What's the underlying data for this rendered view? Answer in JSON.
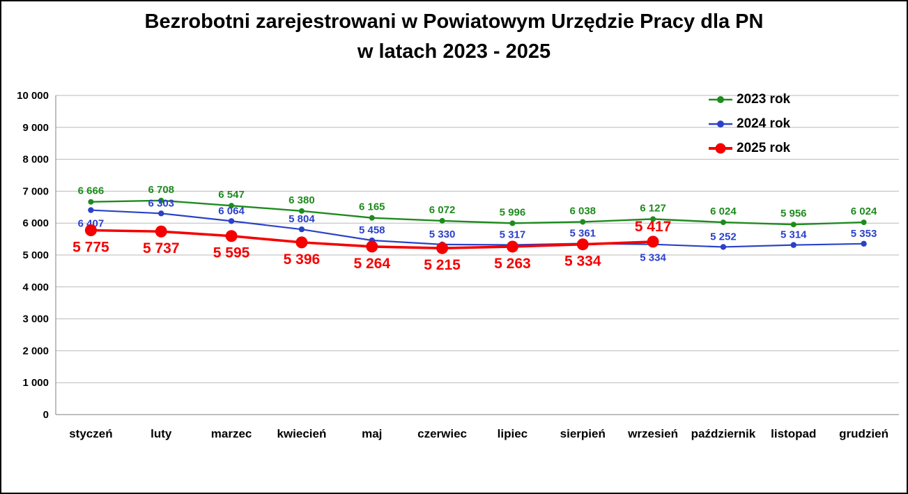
{
  "title": {
    "line1": "Bezrobotni zarejestrowani w Powiatowym Urzędzie Pracy dla PN",
    "line2": "w latach 2023 - 2025"
  },
  "chart_data": {
    "type": "line",
    "title": "Bezrobotni zarejestrowani w Powiatowym Urzędzie Pracy dla PN w latach 2023 - 2025",
    "categories": [
      "styczeń",
      "luty",
      "marzec",
      "kwiecień",
      "maj",
      "czerwiec",
      "lipiec",
      "sierpień",
      "wrzesień",
      "październik",
      "listopad",
      "grudzień"
    ],
    "series": [
      {
        "name": "2023 rok",
        "color": "#1e8b1e",
        "values": [
          6666,
          6708,
          6547,
          6380,
          6165,
          6072,
          5996,
          6038,
          6127,
          6024,
          5956,
          6024
        ]
      },
      {
        "name": "2024 rok",
        "color": "#2a41c8",
        "values": [
          6407,
          6303,
          6064,
          5804,
          5458,
          5330,
          5317,
          5361,
          5334,
          5252,
          5314,
          5353
        ]
      },
      {
        "name": "2025 rok",
        "color": "#f40000",
        "values": [
          5775,
          5737,
          5595,
          5396,
          5264,
          5215,
          5263,
          5334,
          5417,
          null,
          null,
          null
        ]
      }
    ],
    "ylim": [
      0,
      10000
    ],
    "yticks": [
      0,
      1000,
      2000,
      3000,
      4000,
      5000,
      6000,
      7000,
      8000,
      9000,
      10000
    ],
    "ytick_labels": [
      "0",
      "1 000",
      "2 000",
      "3 000",
      "4 000",
      "5 000",
      "6 000",
      "7 000",
      "8 000",
      "9 000",
      "10 000"
    ],
    "grid": true,
    "legend_position": "top-right",
    "xlabel": "",
    "ylabel": ""
  }
}
